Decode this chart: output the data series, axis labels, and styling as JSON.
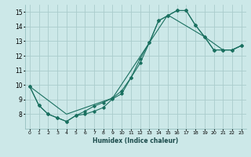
{
  "xlabel": "Humidex (Indice chaleur)",
  "bg_color": "#cce8e8",
  "grid_color": "#aacccc",
  "line_color": "#1a7060",
  "xlim": [
    -0.5,
    23.5
  ],
  "ylim": [
    7,
    15.5
  ],
  "xticks": [
    0,
    1,
    2,
    3,
    4,
    5,
    6,
    7,
    8,
    9,
    10,
    11,
    12,
    13,
    14,
    15,
    16,
    17,
    18,
    19,
    20,
    21,
    22,
    23
  ],
  "yticks": [
    8,
    9,
    10,
    11,
    12,
    13,
    14,
    15
  ],
  "line1_x": [
    0,
    1,
    2,
    3,
    4,
    5,
    6,
    7,
    8,
    9,
    10,
    11,
    12,
    13,
    14,
    15,
    16,
    17,
    18,
    19,
    20,
    21,
    22,
    23
  ],
  "line1_y": [
    9.9,
    8.6,
    8.0,
    7.75,
    7.5,
    7.9,
    8.2,
    8.55,
    8.8,
    9.1,
    9.6,
    10.5,
    11.8,
    12.9,
    14.4,
    14.75,
    15.1,
    15.1,
    14.1,
    13.3,
    12.4,
    12.4,
    12.4,
    12.7
  ],
  "line2_x": [
    0,
    1,
    2,
    3,
    4,
    5,
    6,
    7,
    8,
    9,
    10,
    11,
    12,
    13,
    14,
    15,
    16,
    17,
    18,
    19,
    20,
    21,
    22,
    23
  ],
  "line2_y": [
    9.9,
    8.6,
    8.0,
    7.75,
    7.5,
    7.9,
    8.0,
    8.2,
    8.45,
    9.05,
    9.4,
    10.5,
    11.5,
    12.9,
    14.4,
    14.75,
    15.1,
    15.1,
    14.1,
    13.3,
    12.4,
    12.4,
    12.4,
    12.7
  ],
  "line3_x": [
    0,
    4,
    9,
    15,
    19,
    21,
    22,
    23
  ],
  "line3_y": [
    9.9,
    8.0,
    9.1,
    14.8,
    13.3,
    12.4,
    12.4,
    12.7
  ]
}
